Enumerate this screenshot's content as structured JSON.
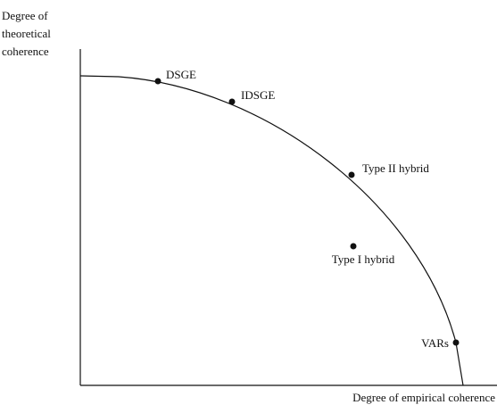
{
  "y_axis_label": [
    "Degree of",
    "theoretical",
    "coherence"
  ],
  "x_axis_label": "Degree of empirical coherence",
  "nodes": [
    {
      "label": "DSGE"
    },
    {
      "label": "IDSGE"
    },
    {
      "label": "Type II hybrid"
    },
    {
      "label": "Type I hybrid"
    },
    {
      "label": "VARs"
    }
  ]
}
